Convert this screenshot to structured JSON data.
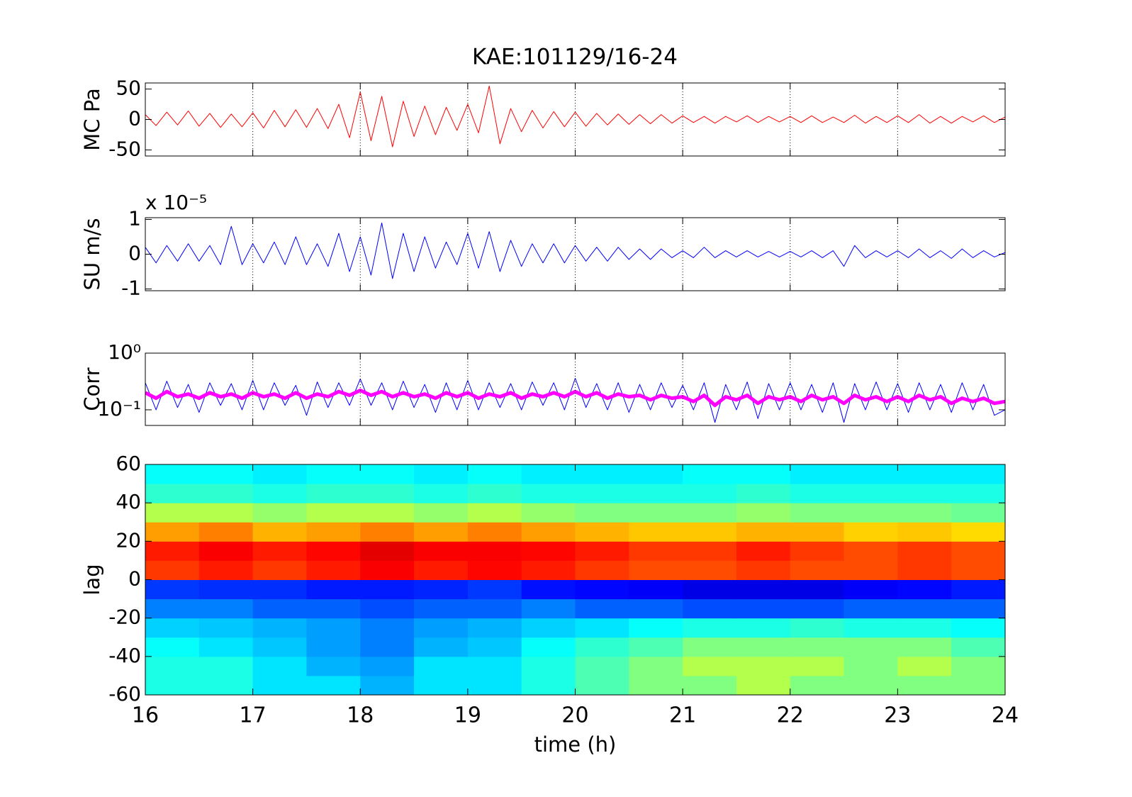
{
  "chart_data": [
    {
      "type": "line",
      "title": "KAE:101129/16-24",
      "ylabel": "MC Pa",
      "xlim": [
        16,
        24
      ],
      "xticks": [
        16,
        17,
        18,
        19,
        20,
        21,
        22,
        23,
        24
      ],
      "show_xtick_labels": false,
      "grid": "x",
      "ylim": [
        -60,
        60
      ],
      "yticks": [
        -50,
        0,
        50
      ],
      "log_y": false,
      "x": [
        16,
        16.1,
        16.2,
        16.3,
        16.4,
        16.5,
        16.6,
        16.7,
        16.8,
        16.9,
        17,
        17.1,
        17.2,
        17.3,
        17.4,
        17.5,
        17.6,
        17.7,
        17.8,
        17.9,
        18,
        18.1,
        18.2,
        18.3,
        18.4,
        18.5,
        18.6,
        18.7,
        18.8,
        18.9,
        19,
        19.1,
        19.2,
        19.3,
        19.4,
        19.5,
        19.6,
        19.7,
        19.8,
        19.9,
        20,
        20.1,
        20.2,
        20.3,
        20.4,
        20.5,
        20.6,
        20.7,
        20.8,
        20.9,
        21,
        21.1,
        21.2,
        21.3,
        21.4,
        21.5,
        21.6,
        21.7,
        21.8,
        21.9,
        22,
        22.1,
        22.2,
        22.3,
        22.4,
        22.5,
        22.6,
        22.7,
        22.8,
        22.9,
        23,
        23.1,
        23.2,
        23.3,
        23.4,
        23.5,
        23.6,
        23.7,
        23.8,
        23.9,
        24
      ],
      "series": [
        {
          "color": "#ff0000",
          "width": 1,
          "values": [
            8,
            -10,
            12,
            -9,
            14,
            -11,
            10,
            -13,
            9,
            -12,
            11,
            -14,
            15,
            -12,
            16,
            -13,
            18,
            -15,
            25,
            -30,
            45,
            -35,
            38,
            -45,
            30,
            -28,
            22,
            -25,
            20,
            -18,
            25,
            -22,
            55,
            -40,
            18,
            -20,
            15,
            -14,
            13,
            -12,
            12,
            -11,
            10,
            -9,
            9,
            -8,
            8,
            -7,
            8,
            -6,
            6,
            -5,
            5,
            -6,
            5,
            -4,
            6,
            -5,
            5,
            -4,
            5,
            -5,
            6,
            -5,
            4,
            -5,
            7,
            -6,
            5,
            -5,
            6,
            -5,
            8,
            -6,
            5,
            -6,
            5,
            -4,
            6,
            -5,
            4
          ]
        }
      ]
    },
    {
      "type": "line",
      "ylabel": "SU m/s",
      "y_multiplier": "x 10⁻⁵",
      "xlim": [
        16,
        24
      ],
      "xticks": [
        16,
        17,
        18,
        19,
        20,
        21,
        22,
        23,
        24
      ],
      "show_xtick_labels": false,
      "grid": "x",
      "ylim": [
        -1.05,
        1.05
      ],
      "yticks": [
        -1,
        0,
        1
      ],
      "log_y": false,
      "x": [
        16,
        16.1,
        16.2,
        16.3,
        16.4,
        16.5,
        16.6,
        16.7,
        16.8,
        16.9,
        17,
        17.1,
        17.2,
        17.3,
        17.4,
        17.5,
        17.6,
        17.7,
        17.8,
        17.9,
        18,
        18.1,
        18.2,
        18.3,
        18.4,
        18.5,
        18.6,
        18.7,
        18.8,
        18.9,
        19,
        19.1,
        19.2,
        19.3,
        19.4,
        19.5,
        19.6,
        19.7,
        19.8,
        19.9,
        20,
        20.1,
        20.2,
        20.3,
        20.4,
        20.5,
        20.6,
        20.7,
        20.8,
        20.9,
        21,
        21.1,
        21.2,
        21.3,
        21.4,
        21.5,
        21.6,
        21.7,
        21.8,
        21.9,
        22,
        22.1,
        22.2,
        22.3,
        22.4,
        22.5,
        22.6,
        22.7,
        22.8,
        22.9,
        23,
        23.1,
        23.2,
        23.3,
        23.4,
        23.5,
        23.6,
        23.7,
        23.8,
        23.9,
        24
      ],
      "series": [
        {
          "color": "#0000ff",
          "width": 1,
          "values": [
            0.2,
            -0.25,
            0.25,
            -0.2,
            0.3,
            -0.2,
            0.25,
            -0.3,
            0.8,
            -0.3,
            0.3,
            -0.25,
            0.35,
            -0.3,
            0.5,
            -0.3,
            0.3,
            -0.35,
            0.6,
            -0.5,
            0.5,
            -0.6,
            0.9,
            -0.7,
            0.6,
            -0.5,
            0.5,
            -0.4,
            0.35,
            -0.3,
            0.6,
            -0.4,
            0.65,
            -0.5,
            0.4,
            -0.35,
            0.3,
            -0.25,
            0.3,
            -0.25,
            0.25,
            -0.2,
            0.2,
            -0.2,
            0.2,
            -0.15,
            0.15,
            -0.15,
            0.15,
            -0.1,
            0.1,
            -0.1,
            0.2,
            -0.1,
            0.1,
            -0.08,
            0.1,
            -0.08,
            0.08,
            -0.08,
            0.08,
            -0.08,
            0.1,
            -0.1,
            0.1,
            -0.35,
            0.25,
            -0.1,
            0.1,
            -0.08,
            0.1,
            -0.1,
            0.15,
            -0.1,
            0.1,
            -0.12,
            0.15,
            -0.1,
            0.1,
            -0.08,
            0.05
          ]
        }
      ]
    },
    {
      "type": "line",
      "ylabel": "Corr",
      "xlim": [
        16,
        24
      ],
      "xticks": [
        16,
        17,
        18,
        19,
        20,
        21,
        22,
        23,
        24
      ],
      "show_xtick_labels": false,
      "grid": "x",
      "ylim": [
        0.053,
        1
      ],
      "yticks": [
        {
          "value": 0.1,
          "label": "10⁻¹"
        },
        {
          "value": 1,
          "label": "10⁰"
        }
      ],
      "log_y": true,
      "x": [
        16,
        16.1,
        16.2,
        16.3,
        16.4,
        16.5,
        16.6,
        16.7,
        16.8,
        16.9,
        17,
        17.1,
        17.2,
        17.3,
        17.4,
        17.5,
        17.6,
        17.7,
        17.8,
        17.9,
        18,
        18.1,
        18.2,
        18.3,
        18.4,
        18.5,
        18.6,
        18.7,
        18.8,
        18.9,
        19,
        19.1,
        19.2,
        19.3,
        19.4,
        19.5,
        19.6,
        19.7,
        19.8,
        19.9,
        20,
        20.1,
        20.2,
        20.3,
        20.4,
        20.5,
        20.6,
        20.7,
        20.8,
        20.9,
        21,
        21.1,
        21.2,
        21.3,
        21.4,
        21.5,
        21.6,
        21.7,
        21.8,
        21.9,
        22,
        22.1,
        22.2,
        22.3,
        22.4,
        22.5,
        22.6,
        22.7,
        22.8,
        22.9,
        23,
        23.1,
        23.2,
        23.3,
        23.4,
        23.5,
        23.6,
        23.7,
        23.8,
        23.9,
        24
      ],
      "series": [
        {
          "color": "#0000ff",
          "width": 1,
          "values": [
            0.3,
            0.1,
            0.32,
            0.11,
            0.28,
            0.09,
            0.3,
            0.12,
            0.29,
            0.1,
            0.33,
            0.1,
            0.3,
            0.12,
            0.27,
            0.08,
            0.31,
            0.11,
            0.3,
            0.12,
            0.35,
            0.12,
            0.3,
            0.1,
            0.32,
            0.11,
            0.28,
            0.09,
            0.3,
            0.1,
            0.33,
            0.1,
            0.3,
            0.11,
            0.29,
            0.1,
            0.31,
            0.12,
            0.3,
            0.1,
            0.36,
            0.11,
            0.29,
            0.1,
            0.3,
            0.09,
            0.28,
            0.1,
            0.3,
            0.11,
            0.27,
            0.1,
            0.3,
            0.06,
            0.28,
            0.1,
            0.31,
            0.07,
            0.29,
            0.1,
            0.3,
            0.1,
            0.28,
            0.09,
            0.3,
            0.06,
            0.29,
            0.1,
            0.31,
            0.1,
            0.29,
            0.09,
            0.3,
            0.1,
            0.28,
            0.09,
            0.3,
            0.1,
            0.28,
            0.08,
            0.1
          ]
        },
        {
          "color": "#ff00ff",
          "width": 5,
          "values": [
            0.2,
            0.16,
            0.21,
            0.17,
            0.19,
            0.16,
            0.2,
            0.17,
            0.19,
            0.16,
            0.2,
            0.17,
            0.19,
            0.16,
            0.2,
            0.16,
            0.19,
            0.17,
            0.21,
            0.18,
            0.22,
            0.18,
            0.21,
            0.17,
            0.2,
            0.17,
            0.19,
            0.16,
            0.2,
            0.17,
            0.2,
            0.16,
            0.19,
            0.17,
            0.2,
            0.16,
            0.19,
            0.17,
            0.2,
            0.17,
            0.21,
            0.17,
            0.2,
            0.16,
            0.19,
            0.17,
            0.18,
            0.15,
            0.18,
            0.16,
            0.17,
            0.14,
            0.18,
            0.12,
            0.17,
            0.15,
            0.18,
            0.13,
            0.17,
            0.15,
            0.17,
            0.14,
            0.18,
            0.15,
            0.17,
            0.13,
            0.18,
            0.15,
            0.17,
            0.14,
            0.17,
            0.14,
            0.18,
            0.15,
            0.17,
            0.13,
            0.16,
            0.14,
            0.16,
            0.13,
            0.14
          ]
        }
      ]
    },
    {
      "type": "heatmap",
      "ylabel": "lag",
      "xlabel": "time (h)",
      "colormap": "jet",
      "clim": [
        0,
        1
      ],
      "xlim": [
        16,
        24
      ],
      "xticks": [
        16,
        17,
        18,
        19,
        20,
        21,
        22,
        23,
        24
      ],
      "show_xtick_labels": true,
      "ylim": [
        -60,
        60
      ],
      "yticks": [
        -60,
        -40,
        -20,
        0,
        20,
        40,
        60
      ],
      "x": [
        16.25,
        16.75,
        17.25,
        17.75,
        18.25,
        18.75,
        19.25,
        19.75,
        20.25,
        20.75,
        21.25,
        21.75,
        22.25,
        22.75,
        23.25,
        23.75
      ],
      "y": [
        -55,
        -45,
        -35,
        -25,
        -15,
        -5,
        5,
        15,
        25,
        35,
        45,
        55
      ],
      "z": [
        [
          0.4,
          0.4,
          0.35,
          0.35,
          0.3,
          0.35,
          0.35,
          0.4,
          0.45,
          0.5,
          0.5,
          0.55,
          0.5,
          0.5,
          0.5,
          0.5
        ],
        [
          0.4,
          0.4,
          0.35,
          0.3,
          0.28,
          0.35,
          0.35,
          0.4,
          0.45,
          0.5,
          0.55,
          0.55,
          0.55,
          0.5,
          0.55,
          0.5
        ],
        [
          0.38,
          0.35,
          0.32,
          0.28,
          0.25,
          0.3,
          0.32,
          0.38,
          0.42,
          0.45,
          0.5,
          0.5,
          0.5,
          0.5,
          0.5,
          0.45
        ],
        [
          0.33,
          0.32,
          0.3,
          0.28,
          0.25,
          0.28,
          0.3,
          0.33,
          0.35,
          0.38,
          0.4,
          0.4,
          0.42,
          0.4,
          0.4,
          0.38
        ],
        [
          0.25,
          0.25,
          0.22,
          0.22,
          0.2,
          0.22,
          0.22,
          0.25,
          0.22,
          0.22,
          0.2,
          0.2,
          0.2,
          0.22,
          0.22,
          0.22
        ],
        [
          0.18,
          0.17,
          0.17,
          0.15,
          0.15,
          0.16,
          0.18,
          0.14,
          0.13,
          0.12,
          0.1,
          0.1,
          0.1,
          0.12,
          0.13,
          0.15
        ],
        [
          0.82,
          0.85,
          0.82,
          0.85,
          0.88,
          0.85,
          0.87,
          0.85,
          0.82,
          0.8,
          0.8,
          0.82,
          0.8,
          0.8,
          0.82,
          0.8
        ],
        [
          0.85,
          0.88,
          0.85,
          0.87,
          0.9,
          0.88,
          0.88,
          0.87,
          0.85,
          0.82,
          0.82,
          0.85,
          0.82,
          0.8,
          0.82,
          0.8
        ],
        [
          0.72,
          0.75,
          0.7,
          0.72,
          0.75,
          0.72,
          0.75,
          0.72,
          0.7,
          0.68,
          0.68,
          0.7,
          0.7,
          0.67,
          0.68,
          0.66
        ],
        [
          0.55,
          0.55,
          0.52,
          0.55,
          0.55,
          0.52,
          0.55,
          0.52,
          0.5,
          0.5,
          0.5,
          0.52,
          0.5,
          0.5,
          0.5,
          0.48
        ],
        [
          0.42,
          0.42,
          0.4,
          0.42,
          0.42,
          0.4,
          0.42,
          0.4,
          0.4,
          0.4,
          0.4,
          0.42,
          0.4,
          0.4,
          0.4,
          0.4
        ],
        [
          0.38,
          0.38,
          0.36,
          0.38,
          0.38,
          0.36,
          0.38,
          0.36,
          0.36,
          0.36,
          0.38,
          0.38,
          0.36,
          0.36,
          0.36,
          0.36
        ]
      ]
    }
  ]
}
